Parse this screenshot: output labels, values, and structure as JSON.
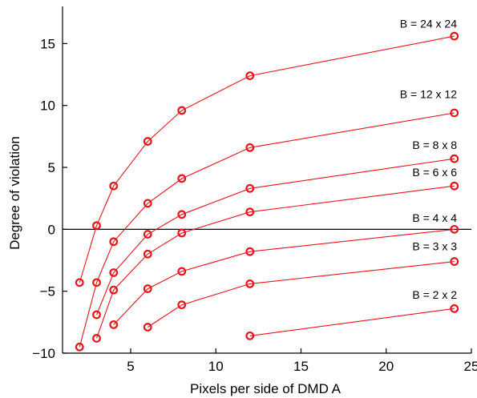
{
  "chart_data": {
    "type": "line",
    "xlabel": "Pixels per side of DMD A",
    "ylabel": "Degree of violation",
    "xlim": [
      1,
      25
    ],
    "ylim": [
      -10,
      18
    ],
    "x_ticks": [
      5,
      10,
      15,
      20,
      25
    ],
    "y_ticks": [
      -10,
      -5,
      0,
      5,
      10,
      15
    ],
    "x_tick_labels": [
      "5",
      "10",
      "15",
      "20",
      "25"
    ],
    "y_tick_labels": [
      "−10",
      "−5",
      "0",
      "5",
      "10",
      "15"
    ],
    "reference_line": {
      "y": 0,
      "color": "#000000"
    },
    "series_color": "#e8141c",
    "series": [
      {
        "name": "B = 24 x 24",
        "x": [
          2,
          3,
          4,
          6,
          8,
          12,
          24
        ],
        "y": [
          -4.3,
          0.3,
          3.5,
          7.1,
          9.6,
          12.4,
          15.6
        ]
      },
      {
        "name": "B = 12 x 12",
        "x": [
          2,
          3,
          4,
          6,
          8,
          12,
          24
        ],
        "y": [
          -9.5,
          -4.3,
          -1.0,
          2.1,
          4.1,
          6.6,
          9.4
        ]
      },
      {
        "name": "B = 8 x 8",
        "x": [
          3,
          4,
          6,
          8,
          12,
          24
        ],
        "y": [
          -6.9,
          -3.5,
          -0.4,
          1.2,
          3.3,
          5.7
        ]
      },
      {
        "name": "B = 6 x 6",
        "x": [
          3,
          4,
          6,
          8,
          12,
          24
        ],
        "y": [
          -8.8,
          -4.9,
          -2.0,
          -0.3,
          1.4,
          3.5
        ]
      },
      {
        "name": "B = 4 x 4",
        "x": [
          4,
          6,
          8,
          12,
          24
        ],
        "y": [
          -7.7,
          -4.8,
          -3.4,
          -1.8,
          0.0
        ]
      },
      {
        "name": "B = 3 x 3",
        "x": [
          6,
          8,
          12,
          24
        ],
        "y": [
          -7.9,
          -6.1,
          -4.4,
          -2.6
        ]
      },
      {
        "name": "B = 2 x 2",
        "x": [
          12,
          24
        ],
        "y": [
          -8.6,
          -6.4
        ]
      }
    ],
    "label_positions": [
      16.3,
      10.6,
      6.5,
      4.3,
      0.6,
      -1.7,
      -5.6
    ]
  }
}
